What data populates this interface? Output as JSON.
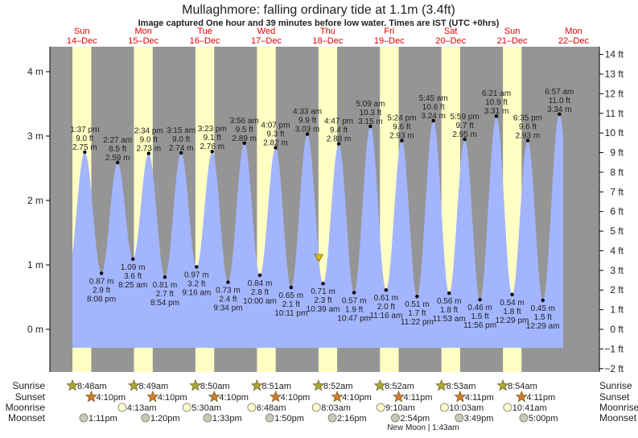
{
  "title": "Mullaghmore: falling  ordinary tide at 1.1m (3.4ft)",
  "subtitle": "Image captured One hour and 39 minutes before low water. Times are IST (UTC +0hrs)",
  "colors": {
    "water": "#a3b5ff",
    "day": "#ffffc4",
    "night": "#959595",
    "dayname": "#e00000",
    "sunrise": "#a8a832",
    "sunset": "#d87a2a",
    "moonrise": "#ffffcc",
    "moonset": "#c8c8b4",
    "marker": "#e0c000"
  },
  "chart_data": {
    "type": "area",
    "title": "Mullaghmore: falling  ordinary tide at 1.1m (3.4ft)",
    "ylabel_left": "m",
    "ylabel_right": "ft",
    "ylim_m": [
      -0.6,
      4.4
    ],
    "left_ticks": [
      {
        "v": 0,
        "label": "0 m"
      },
      {
        "v": 1,
        "label": "1 m"
      },
      {
        "v": 2,
        "label": "2 m"
      },
      {
        "v": 3,
        "label": "3 m"
      },
      {
        "v": 4,
        "label": "4 m"
      }
    ],
    "right_ticks": [
      {
        "v": -2,
        "label": "−2 ft"
      },
      {
        "v": -1,
        "label": "−1 ft"
      },
      {
        "v": 0,
        "label": "0 ft"
      },
      {
        "v": 1,
        "label": "1 ft"
      },
      {
        "v": 2,
        "label": "2 ft"
      },
      {
        "v": 3,
        "label": "3 ft"
      },
      {
        "v": 4,
        "label": "4 ft"
      },
      {
        "v": 5,
        "label": "5 ft"
      },
      {
        "v": 6,
        "label": "6 ft"
      },
      {
        "v": 7,
        "label": "7 ft"
      },
      {
        "v": 8,
        "label": "8 ft"
      },
      {
        "v": 9,
        "label": "9 ft"
      },
      {
        "v": 10,
        "label": "10 ft"
      },
      {
        "v": 11,
        "label": "11 ft"
      },
      {
        "v": 12,
        "label": "12 ft"
      },
      {
        "v": 13,
        "label": "13 ft"
      },
      {
        "v": 14,
        "label": "14 ft"
      }
    ],
    "days": [
      {
        "name": "Sun",
        "date": "14–Dec"
      },
      {
        "name": "Mon",
        "date": "15–Dec"
      },
      {
        "name": "Tue",
        "date": "16–Dec"
      },
      {
        "name": "Wed",
        "date": "17–Dec"
      },
      {
        "name": "Thu",
        "date": "18–Dec"
      },
      {
        "name": "Fri",
        "date": "19–Dec"
      },
      {
        "name": "Sat",
        "date": "20–Dec"
      },
      {
        "name": "Sun",
        "date": "21–Dec"
      },
      {
        "name": "Mon",
        "date": "22–Dec"
      }
    ],
    "tides": [
      {
        "day": 0,
        "time": "1:37 pm",
        "type": "high",
        "m": 2.75,
        "ft": "9.0 ft",
        "m_label": "2.75 m"
      },
      {
        "day": 0,
        "time": "8:08 pm",
        "type": "low",
        "m": 0.87,
        "ft": "2.9 ft",
        "m_label": "0.87 m"
      },
      {
        "day": 1,
        "time": "2:27 am",
        "type": "high",
        "m": 2.59,
        "ft": "8.5 ft",
        "m_label": "2.59 m"
      },
      {
        "day": 1,
        "time": "8:25 am",
        "type": "low",
        "m": 1.09,
        "ft": "3.6 ft",
        "m_label": "1.09 m"
      },
      {
        "day": 1,
        "time": "2:34 pm",
        "type": "high",
        "m": 2.73,
        "ft": "9.0 ft",
        "m_label": "2.73 m"
      },
      {
        "day": 1,
        "time": "8:54 pm",
        "type": "low",
        "m": 0.81,
        "ft": "2.7 ft",
        "m_label": "0.81 m"
      },
      {
        "day": 2,
        "time": "3:15 am",
        "type": "high",
        "m": 2.74,
        "ft": "9.0 ft",
        "m_label": "2.74 m"
      },
      {
        "day": 2,
        "time": "9:16 am",
        "type": "low",
        "m": 0.97,
        "ft": "3.2 ft",
        "m_label": "0.97 m"
      },
      {
        "day": 2,
        "time": "3:23 pm",
        "type": "high",
        "m": 2.76,
        "ft": "9.1 ft",
        "m_label": "2.76 m"
      },
      {
        "day": 2,
        "time": "9:34 pm",
        "type": "low",
        "m": 0.73,
        "ft": "2.4 ft",
        "m_label": "0.73 m"
      },
      {
        "day": 3,
        "time": "3:56 am",
        "type": "high",
        "m": 2.89,
        "ft": "9.5 ft",
        "m_label": "2.89 m"
      },
      {
        "day": 3,
        "time": "10:00 am",
        "type": "low",
        "m": 0.84,
        "ft": "2.8 ft",
        "m_label": "0.84 m"
      },
      {
        "day": 3,
        "time": "4:07 pm",
        "type": "high",
        "m": 2.82,
        "ft": "9.3 ft",
        "m_label": "2.82 m"
      },
      {
        "day": 3,
        "time": "10:11 pm",
        "type": "low",
        "m": 0.65,
        "ft": "2.1 ft",
        "m_label": "0.65 m"
      },
      {
        "day": 4,
        "time": "4:33 am",
        "type": "high",
        "m": 3.03,
        "ft": "9.9 ft",
        "m_label": "3.03 m"
      },
      {
        "day": 4,
        "time": "10:39 am",
        "type": "low",
        "m": 0.71,
        "ft": "2.3 ft",
        "m_label": "0.71 m"
      },
      {
        "day": 4,
        "time": "4:47 pm",
        "type": "high",
        "m": 2.88,
        "ft": "9.4 ft",
        "m_label": "2.88 m"
      },
      {
        "day": 4,
        "time": "10:47 pm",
        "type": "low",
        "m": 0.57,
        "ft": "1.9 ft",
        "m_label": "0.57 m"
      },
      {
        "day": 5,
        "time": "5:09 am",
        "type": "high",
        "m": 3.15,
        "ft": "10.3 ft",
        "m_label": "3.15 m"
      },
      {
        "day": 5,
        "time": "11:16 am",
        "type": "low",
        "m": 0.61,
        "ft": "2.0 ft",
        "m_label": "0.61 m"
      },
      {
        "day": 5,
        "time": "5:24 pm",
        "type": "high",
        "m": 2.93,
        "ft": "9.6 ft",
        "m_label": "2.93 m"
      },
      {
        "day": 5,
        "time": "11:22 pm",
        "type": "low",
        "m": 0.51,
        "ft": "1.7 ft",
        "m_label": "0.51 m"
      },
      {
        "day": 6,
        "time": "5:45 am",
        "type": "high",
        "m": 3.24,
        "ft": "10.6 ft",
        "m_label": "3.24 m"
      },
      {
        "day": 6,
        "time": "11:53 am",
        "type": "low",
        "m": 0.56,
        "ft": "1.8 ft",
        "m_label": "0.56 m"
      },
      {
        "day": 6,
        "time": "5:59 pm",
        "type": "high",
        "m": 2.95,
        "ft": "9.7 ft",
        "m_label": "2.95 m"
      },
      {
        "day": 6,
        "time": "11:56 pm",
        "type": "low",
        "m": 0.46,
        "ft": "1.5 ft",
        "m_label": "0.46 m"
      },
      {
        "day": 7,
        "time": "6:21 am",
        "type": "high",
        "m": 3.31,
        "ft": "10.9 ft",
        "m_label": "3.31 m"
      },
      {
        "day": 7,
        "time": "12:29 pm",
        "type": "low",
        "m": 0.54,
        "ft": "1.8 ft",
        "m_label": "0.54 m"
      },
      {
        "day": 7,
        "time": "6:35 pm",
        "type": "high",
        "m": 2.93,
        "ft": "9.6 ft",
        "m_label": "2.93 m"
      },
      {
        "day": 8,
        "time": "12:29 am",
        "type": "low",
        "m": 0.45,
        "ft": "1.5 ft",
        "m_label": "0.45 m"
      },
      {
        "day": 8,
        "time": "6:57 am",
        "type": "high",
        "m": 3.34,
        "ft": "11.0 ft",
        "m_label": "3.34 m"
      }
    ],
    "current": {
      "day": 4,
      "time": "9:00 am",
      "m": 1.1
    }
  },
  "astro": {
    "labels": {
      "sunrise": "Sunrise",
      "sunset": "Sunset",
      "moonrise": "Moonrise",
      "moonset": "Moonset"
    },
    "sunrise": [
      {
        "day": 0,
        "time": "8:48am"
      },
      {
        "day": 1,
        "time": "8:49am"
      },
      {
        "day": 2,
        "time": "8:50am"
      },
      {
        "day": 3,
        "time": "8:51am"
      },
      {
        "day": 4,
        "time": "8:52am"
      },
      {
        "day": 5,
        "time": "8:52am"
      },
      {
        "day": 6,
        "time": "8:53am"
      },
      {
        "day": 7,
        "time": "8:54am"
      }
    ],
    "sunset": [
      {
        "day": 0,
        "time": "4:10pm"
      },
      {
        "day": 1,
        "time": "4:10pm"
      },
      {
        "day": 2,
        "time": "4:10pm"
      },
      {
        "day": 3,
        "time": "4:10pm"
      },
      {
        "day": 4,
        "time": "4:10pm"
      },
      {
        "day": 5,
        "time": "4:11pm"
      },
      {
        "day": 6,
        "time": "4:11pm"
      },
      {
        "day": 7,
        "time": "4:11pm"
      }
    ],
    "moonrise": [
      {
        "day": 1,
        "time": "4:13am"
      },
      {
        "day": 2,
        "time": "5:30am"
      },
      {
        "day": 3,
        "time": "6:48am"
      },
      {
        "day": 4,
        "time": "8:03am"
      },
      {
        "day": 5,
        "time": "9:10am"
      },
      {
        "day": 6,
        "time": "10:03am"
      },
      {
        "day": 7,
        "time": "10:41am"
      }
    ],
    "moonset": [
      {
        "day": 0,
        "time": "1:11pm"
      },
      {
        "day": 1,
        "time": "1:20pm"
      },
      {
        "day": 2,
        "time": "1:33pm"
      },
      {
        "day": 3,
        "time": "1:50pm"
      },
      {
        "day": 4,
        "time": "2:16pm"
      },
      {
        "day": 5,
        "time": "2:54pm"
      },
      {
        "day": 6,
        "time": "3:49pm"
      },
      {
        "day": 7,
        "time": "5:00pm"
      }
    ],
    "moon_phase": {
      "day": 6,
      "time_24": "1:43am",
      "label": "New Moon | 1:43am"
    }
  }
}
